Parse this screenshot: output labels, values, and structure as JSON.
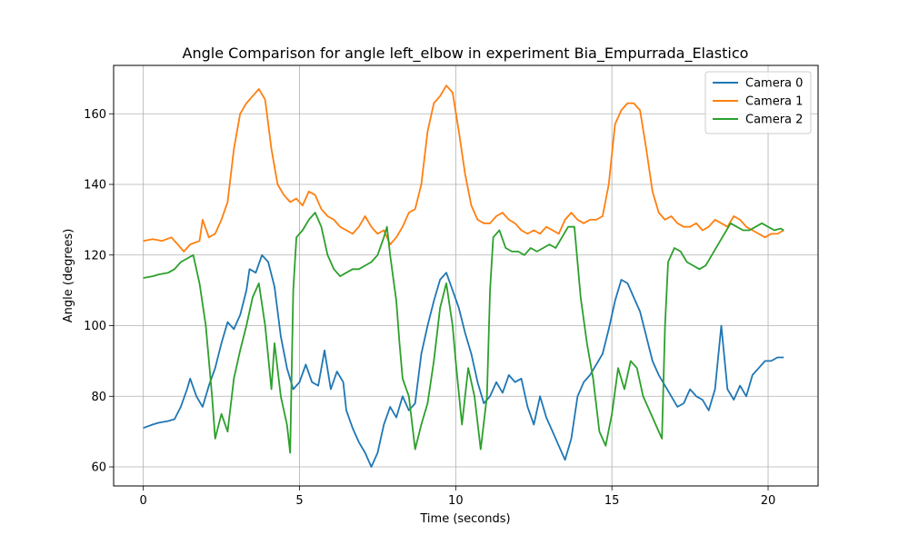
{
  "chart_data": {
    "type": "line",
    "title": "Angle Comparison for angle left_elbow in experiment Bia_Empurrada_Elastico",
    "xlabel": "Time (seconds)",
    "ylabel": "Angle (degrees)",
    "xlim": [
      -0.95,
      21.6
    ],
    "ylim": [
      54.6,
      173.7
    ],
    "xticks": [
      0,
      5,
      10,
      15,
      20
    ],
    "yticks": [
      60,
      80,
      100,
      120,
      140,
      160
    ],
    "grid": true,
    "legend_position": "top-right",
    "series": [
      {
        "name": "Camera 0",
        "color": "#1f77b4",
        "points": [
          [
            0,
            71
          ],
          [
            0.3,
            72
          ],
          [
            0.5,
            72.5
          ],
          [
            0.8,
            73
          ],
          [
            1.0,
            73.5
          ],
          [
            1.2,
            77
          ],
          [
            1.4,
            82
          ],
          [
            1.5,
            85
          ],
          [
            1.7,
            80
          ],
          [
            1.9,
            77
          ],
          [
            2.1,
            83
          ],
          [
            2.3,
            88
          ],
          [
            2.5,
            95
          ],
          [
            2.7,
            101
          ],
          [
            2.9,
            99
          ],
          [
            3.1,
            103
          ],
          [
            3.3,
            110
          ],
          [
            3.4,
            116
          ],
          [
            3.6,
            115
          ],
          [
            3.8,
            120
          ],
          [
            4.0,
            118
          ],
          [
            4.2,
            111
          ],
          [
            4.4,
            97
          ],
          [
            4.6,
            88
          ],
          [
            4.8,
            82
          ],
          [
            5.0,
            84
          ],
          [
            5.2,
            89
          ],
          [
            5.4,
            84
          ],
          [
            5.6,
            83
          ],
          [
            5.8,
            93
          ],
          [
            6.0,
            82
          ],
          [
            6.2,
            87
          ],
          [
            6.4,
            84
          ],
          [
            6.5,
            76
          ],
          [
            6.7,
            71
          ],
          [
            6.9,
            67
          ],
          [
            7.1,
            64
          ],
          [
            7.3,
            60
          ],
          [
            7.5,
            64
          ],
          [
            7.7,
            72
          ],
          [
            7.9,
            77
          ],
          [
            8.1,
            74
          ],
          [
            8.3,
            80
          ],
          [
            8.5,
            76
          ],
          [
            8.7,
            78
          ],
          [
            8.9,
            92
          ],
          [
            9.1,
            100
          ],
          [
            9.3,
            107
          ],
          [
            9.5,
            113
          ],
          [
            9.7,
            115
          ],
          [
            9.9,
            110
          ],
          [
            10.1,
            105
          ],
          [
            10.3,
            98
          ],
          [
            10.5,
            92
          ],
          [
            10.7,
            84
          ],
          [
            10.9,
            78
          ],
          [
            11.1,
            80
          ],
          [
            11.3,
            84
          ],
          [
            11.5,
            81
          ],
          [
            11.7,
            86
          ],
          [
            11.9,
            84
          ],
          [
            12.1,
            85
          ],
          [
            12.3,
            77
          ],
          [
            12.5,
            72
          ],
          [
            12.7,
            80
          ],
          [
            12.9,
            74
          ],
          [
            13.1,
            70
          ],
          [
            13.3,
            66
          ],
          [
            13.5,
            62
          ],
          [
            13.7,
            68
          ],
          [
            13.9,
            80
          ],
          [
            14.1,
            84
          ],
          [
            14.3,
            86
          ],
          [
            14.5,
            89
          ],
          [
            14.7,
            92
          ],
          [
            14.9,
            99
          ],
          [
            15.1,
            107
          ],
          [
            15.3,
            113
          ],
          [
            15.5,
            112
          ],
          [
            15.7,
            108
          ],
          [
            15.9,
            104
          ],
          [
            16.1,
            97
          ],
          [
            16.3,
            90
          ],
          [
            16.5,
            86
          ],
          [
            16.7,
            83
          ],
          [
            16.9,
            80
          ],
          [
            17.1,
            77
          ],
          [
            17.3,
            78
          ],
          [
            17.5,
            82
          ],
          [
            17.7,
            80
          ],
          [
            17.9,
            79
          ],
          [
            18.1,
            76
          ],
          [
            18.3,
            82
          ],
          [
            18.5,
            100
          ],
          [
            18.7,
            82
          ],
          [
            18.9,
            79
          ],
          [
            19.1,
            83
          ],
          [
            19.3,
            80
          ],
          [
            19.5,
            86
          ],
          [
            19.7,
            88
          ],
          [
            19.9,
            90
          ],
          [
            20.1,
            90
          ],
          [
            20.3,
            91
          ],
          [
            20.5,
            91
          ]
        ]
      },
      {
        "name": "Camera 1",
        "color": "#ff7f0e",
        "points": [
          [
            0,
            124
          ],
          [
            0.3,
            124.5
          ],
          [
            0.6,
            124
          ],
          [
            0.9,
            125
          ],
          [
            1.1,
            123
          ],
          [
            1.3,
            121
          ],
          [
            1.5,
            123
          ],
          [
            1.8,
            124
          ],
          [
            1.9,
            130
          ],
          [
            2.1,
            125
          ],
          [
            2.3,
            126
          ],
          [
            2.5,
            130
          ],
          [
            2.7,
            135
          ],
          [
            2.9,
            150
          ],
          [
            3.1,
            160
          ],
          [
            3.3,
            163
          ],
          [
            3.5,
            165
          ],
          [
            3.7,
            167
          ],
          [
            3.9,
            164
          ],
          [
            4.1,
            150
          ],
          [
            4.3,
            140
          ],
          [
            4.5,
            137
          ],
          [
            4.7,
            135
          ],
          [
            4.9,
            136
          ],
          [
            5.1,
            134
          ],
          [
            5.3,
            138
          ],
          [
            5.5,
            137
          ],
          [
            5.7,
            133
          ],
          [
            5.9,
            131
          ],
          [
            6.1,
            130
          ],
          [
            6.3,
            128
          ],
          [
            6.5,
            127
          ],
          [
            6.7,
            126
          ],
          [
            6.9,
            128
          ],
          [
            7.1,
            131
          ],
          [
            7.3,
            128
          ],
          [
            7.5,
            126
          ],
          [
            7.7,
            127
          ],
          [
            7.9,
            123
          ],
          [
            8.1,
            125
          ],
          [
            8.3,
            128
          ],
          [
            8.5,
            132
          ],
          [
            8.7,
            133
          ],
          [
            8.9,
            140
          ],
          [
            9.1,
            155
          ],
          [
            9.3,
            163
          ],
          [
            9.5,
            165
          ],
          [
            9.7,
            168
          ],
          [
            9.9,
            166
          ],
          [
            10.1,
            155
          ],
          [
            10.3,
            143
          ],
          [
            10.5,
            134
          ],
          [
            10.7,
            130
          ],
          [
            10.9,
            129
          ],
          [
            11.1,
            129
          ],
          [
            11.3,
            131
          ],
          [
            11.5,
            132
          ],
          [
            11.7,
            130
          ],
          [
            11.9,
            129
          ],
          [
            12.1,
            127
          ],
          [
            12.3,
            126
          ],
          [
            12.5,
            127
          ],
          [
            12.7,
            126
          ],
          [
            12.9,
            128
          ],
          [
            13.1,
            127
          ],
          [
            13.3,
            126
          ],
          [
            13.5,
            130
          ],
          [
            13.7,
            132
          ],
          [
            13.9,
            130
          ],
          [
            14.1,
            129
          ],
          [
            14.3,
            130
          ],
          [
            14.5,
            130
          ],
          [
            14.7,
            131
          ],
          [
            14.9,
            140
          ],
          [
            15.1,
            157
          ],
          [
            15.3,
            161
          ],
          [
            15.5,
            163
          ],
          [
            15.7,
            163
          ],
          [
            15.9,
            161
          ],
          [
            16.1,
            150
          ],
          [
            16.3,
            138
          ],
          [
            16.5,
            132
          ],
          [
            16.7,
            130
          ],
          [
            16.9,
            131
          ],
          [
            17.1,
            129
          ],
          [
            17.3,
            128
          ],
          [
            17.5,
            128
          ],
          [
            17.7,
            129
          ],
          [
            17.9,
            127
          ],
          [
            18.1,
            128
          ],
          [
            18.3,
            130
          ],
          [
            18.5,
            129
          ],
          [
            18.7,
            128
          ],
          [
            18.9,
            131
          ],
          [
            19.1,
            130
          ],
          [
            19.3,
            128
          ],
          [
            19.5,
            127
          ],
          [
            19.7,
            126
          ],
          [
            19.9,
            125
          ],
          [
            20.1,
            126
          ],
          [
            20.3,
            126
          ],
          [
            20.5,
            127
          ]
        ]
      },
      {
        "name": "Camera 2",
        "color": "#2ca02c",
        "points": [
          [
            0,
            113.5
          ],
          [
            0.3,
            114
          ],
          [
            0.5,
            114.5
          ],
          [
            0.8,
            115
          ],
          [
            1.0,
            116
          ],
          [
            1.2,
            118
          ],
          [
            1.4,
            119
          ],
          [
            1.6,
            120
          ],
          [
            1.8,
            112
          ],
          [
            2.0,
            100
          ],
          [
            2.2,
            80
          ],
          [
            2.3,
            68
          ],
          [
            2.5,
            75
          ],
          [
            2.7,
            70
          ],
          [
            2.9,
            85
          ],
          [
            3.1,
            93
          ],
          [
            3.3,
            100
          ],
          [
            3.5,
            108
          ],
          [
            3.7,
            112
          ],
          [
            3.9,
            100
          ],
          [
            4.1,
            82
          ],
          [
            4.2,
            95
          ],
          [
            4.4,
            80
          ],
          [
            4.6,
            72
          ],
          [
            4.7,
            64
          ],
          [
            4.8,
            110
          ],
          [
            4.9,
            125
          ],
          [
            5.1,
            127
          ],
          [
            5.3,
            130
          ],
          [
            5.5,
            132
          ],
          [
            5.7,
            128
          ],
          [
            5.9,
            120
          ],
          [
            6.1,
            116
          ],
          [
            6.3,
            114
          ],
          [
            6.5,
            115
          ],
          [
            6.7,
            116
          ],
          [
            6.9,
            116
          ],
          [
            7.1,
            117
          ],
          [
            7.3,
            118
          ],
          [
            7.5,
            120
          ],
          [
            7.7,
            125
          ],
          [
            7.8,
            128
          ],
          [
            7.9,
            120
          ],
          [
            8.1,
            107
          ],
          [
            8.2,
            95
          ],
          [
            8.3,
            85
          ],
          [
            8.5,
            80
          ],
          [
            8.7,
            65
          ],
          [
            8.9,
            72
          ],
          [
            9.1,
            78
          ],
          [
            9.3,
            90
          ],
          [
            9.5,
            105
          ],
          [
            9.7,
            112
          ],
          [
            9.9,
            100
          ],
          [
            10.0,
            90
          ],
          [
            10.2,
            72
          ],
          [
            10.4,
            88
          ],
          [
            10.6,
            80
          ],
          [
            10.8,
            65
          ],
          [
            11.0,
            80
          ],
          [
            11.1,
            110
          ],
          [
            11.2,
            125
          ],
          [
            11.4,
            127
          ],
          [
            11.6,
            122
          ],
          [
            11.8,
            121
          ],
          [
            12.0,
            121
          ],
          [
            12.2,
            120
          ],
          [
            12.4,
            122
          ],
          [
            12.6,
            121
          ],
          [
            12.8,
            122
          ],
          [
            13.0,
            123
          ],
          [
            13.2,
            122
          ],
          [
            13.4,
            125
          ],
          [
            13.6,
            128
          ],
          [
            13.8,
            128
          ],
          [
            14.0,
            108
          ],
          [
            14.2,
            95
          ],
          [
            14.4,
            85
          ],
          [
            14.6,
            70
          ],
          [
            14.8,
            66
          ],
          [
            15.0,
            75
          ],
          [
            15.2,
            88
          ],
          [
            15.4,
            82
          ],
          [
            15.6,
            90
          ],
          [
            15.8,
            88
          ],
          [
            16.0,
            80
          ],
          [
            16.2,
            76
          ],
          [
            16.4,
            72
          ],
          [
            16.6,
            68
          ],
          [
            16.7,
            100
          ],
          [
            16.8,
            118
          ],
          [
            17.0,
            122
          ],
          [
            17.2,
            121
          ],
          [
            17.4,
            118
          ],
          [
            17.6,
            117
          ],
          [
            17.8,
            116
          ],
          [
            18.0,
            117
          ],
          [
            18.2,
            120
          ],
          [
            18.4,
            123
          ],
          [
            18.6,
            126
          ],
          [
            18.8,
            129
          ],
          [
            19.0,
            128
          ],
          [
            19.2,
            127
          ],
          [
            19.4,
            127
          ],
          [
            19.6,
            128
          ],
          [
            19.8,
            129
          ],
          [
            20.0,
            128
          ],
          [
            20.2,
            127
          ],
          [
            20.4,
            127.5
          ],
          [
            20.5,
            127
          ]
        ]
      }
    ]
  }
}
